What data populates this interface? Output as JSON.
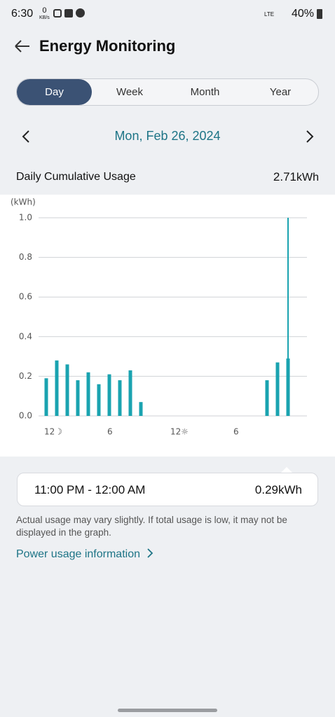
{
  "status_bar": {
    "time": "6:30",
    "data_speed": "0",
    "data_unit": "KB/s",
    "network": "LTE",
    "battery": "40%"
  },
  "header": {
    "title": "Energy Monitoring"
  },
  "tabs": {
    "items": [
      "Day",
      "Week",
      "Month",
      "Year"
    ],
    "selected": 0
  },
  "date_nav": {
    "date": "Mon, Feb 26, 2024"
  },
  "summary": {
    "label": "Daily Cumulative Usage",
    "value": "2.71",
    "unit": "kWh"
  },
  "chart_data": {
    "type": "bar",
    "y_label": "(kWh)",
    "categories": [
      "12☽",
      null,
      null,
      null,
      null,
      null,
      "6",
      null,
      null,
      null,
      null,
      null,
      "12☼",
      null,
      null,
      null,
      null,
      null,
      "6",
      null,
      null,
      null,
      null,
      null
    ],
    "values": [
      0.19,
      0.28,
      0.26,
      0.18,
      0.22,
      0.16,
      0.21,
      0.18,
      0.23,
      0.07,
      0,
      0,
      0,
      0,
      0,
      0,
      0,
      0,
      0,
      0,
      0,
      0.18,
      0.27,
      0.29
    ],
    "color": "#1aa3b0",
    "ylim": [
      0,
      1.0
    ],
    "yticks": [
      {
        "value": 0,
        "label": "0.0"
      },
      0.2,
      0.4,
      0.6,
      0.8,
      {
        "value": 1.0,
        "label": "1.0"
      }
    ],
    "grid": true
  },
  "detail": {
    "range": "11:00 PM - 12:00 AM",
    "value": "0.29",
    "unit": "kWh"
  },
  "note": "Actual usage may vary slightly. If total usage is low, it may not be displayed in the graph.",
  "link": "Power usage information"
}
